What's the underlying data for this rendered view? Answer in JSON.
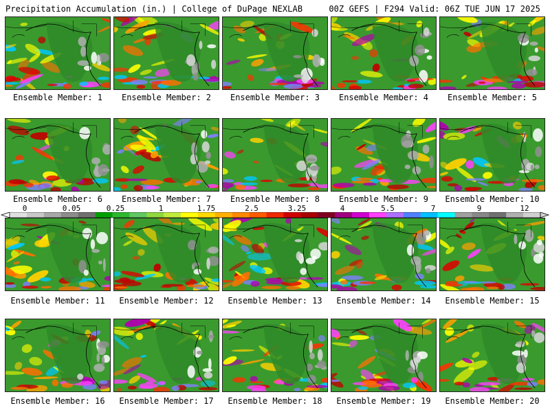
{
  "header": {
    "left": "Precipitation Accumulation (in.) | College of DuPage NEXLAB",
    "right": "00Z GEFS | F294 Valid: 06Z TUE JUN 17 2025"
  },
  "panels": [
    {
      "member": "Ensemble Member: 1"
    },
    {
      "member": "Ensemble Member: 2"
    },
    {
      "member": "Ensemble Member: 3"
    },
    {
      "member": "Ensemble Member: 4"
    },
    {
      "member": "Ensemble Member: 5"
    },
    {
      "member": "Ensemble Member: 6"
    },
    {
      "member": "Ensemble Member: 7"
    },
    {
      "member": "Ensemble Member: 8"
    },
    {
      "member": "Ensemble Member: 9"
    },
    {
      "member": "Ensemble Member: 10"
    },
    {
      "member": "Ensemble Member: 11"
    },
    {
      "member": "Ensemble Member: 12"
    },
    {
      "member": "Ensemble Member: 13"
    },
    {
      "member": "Ensemble Member: 14"
    },
    {
      "member": "Ensemble Member: 15"
    },
    {
      "member": "Ensemble Member: 16"
    },
    {
      "member": "Ensemble Member: 17"
    },
    {
      "member": "Ensemble Member: 18"
    },
    {
      "member": "Ensemble Member: 19"
    },
    {
      "member": "Ensemble Member: 20"
    }
  ],
  "legend": {
    "tick_labels": [
      "0",
      "0.05",
      "0.25",
      "1",
      "1.75",
      "2.5",
      "3.25",
      "4",
      "5.5",
      "7",
      "9",
      "12"
    ],
    "colors": [
      "#e0e0e0",
      "#c8c8c8",
      "#a8a8a8",
      "#8c8c8c",
      "#707070",
      "#00a000",
      "#2db82d",
      "#60c860",
      "#90d83c",
      "#c0ec3c",
      "#ffff00",
      "#ffd800",
      "#ffb000",
      "#ff8800",
      "#ff5a00",
      "#f02800",
      "#d00000",
      "#a80000",
      "#800020",
      "#a00080",
      "#d000d0",
      "#ff40ff",
      "#b070ff",
      "#5080ff",
      "#00c0ff",
      "#00ffff",
      "#a0a0a0",
      "#888888",
      "#707070",
      "#b0b0b0",
      "#d0d0d0"
    ]
  },
  "map_colors": {
    "ocean_base": "#3a9a2e",
    "land_base": "#2f8a28",
    "coast": "#000000"
  }
}
